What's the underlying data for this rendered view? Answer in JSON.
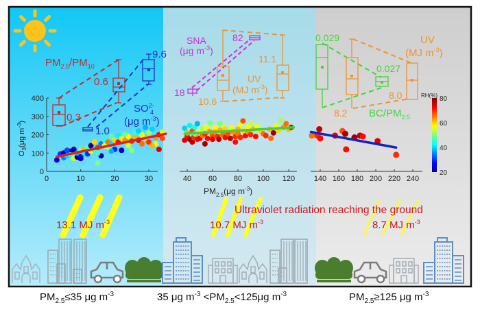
{
  "panels": [
    {
      "id": "low",
      "condition_label": {
        "prefix": "PM",
        "sub": "2.5",
        "text": "≤35 μg m",
        "sup": "-3"
      },
      "background": [
        "#12c7f5",
        "#b6ecfb"
      ],
      "uv_value_label": "13.1 MJ m-3",
      "uv_value": {
        "number": "13.1",
        "unit": "MJ m",
        "sup": "-3"
      },
      "scatter": {
        "xlim": [
          0,
          35
        ],
        "xticks": [
          0,
          10,
          20,
          30
        ],
        "ylim": [
          0,
          400
        ],
        "yticks": [
          0,
          100,
          200,
          300,
          400
        ],
        "ylabel": {
          "main": "O",
          "sub": "3",
          "rest": "(μg m",
          "sup": "-3",
          "close": ")"
        },
        "fit_line": {
          "color": "#e01f1f",
          "x": [
            3,
            35
          ],
          "y": [
            80,
            205
          ]
        },
        "points": [
          [
            3,
            62,
            25
          ],
          [
            4,
            95,
            30
          ],
          [
            5,
            100,
            22
          ],
          [
            5,
            75,
            35
          ],
          [
            6,
            85,
            40
          ],
          [
            7,
            110,
            25
          ],
          [
            7,
            90,
            45
          ],
          [
            8,
            120,
            22
          ],
          [
            8,
            70,
            55
          ],
          [
            9,
            78,
            20
          ],
          [
            9,
            100,
            38
          ],
          [
            10,
            80,
            28
          ],
          [
            10,
            115,
            50
          ],
          [
            11,
            120,
            62
          ],
          [
            11,
            100,
            42
          ],
          [
            12,
            130,
            48
          ],
          [
            12,
            95,
            30
          ],
          [
            13,
            140,
            22
          ],
          [
            13,
            110,
            56
          ],
          [
            14,
            120,
            44
          ],
          [
            14,
            160,
            60
          ],
          [
            15,
            130,
            70
          ],
          [
            15,
            45,
            50
          ],
          [
            16,
            150,
            35
          ],
          [
            16,
            85,
            22
          ],
          [
            17,
            140,
            58
          ],
          [
            17,
            170,
            45
          ],
          [
            18,
            160,
            66
          ],
          [
            18,
            130,
            52
          ],
          [
            19,
            150,
            40
          ],
          [
            19,
            190,
            48
          ],
          [
            20,
            170,
            60
          ],
          [
            20,
            120,
            30
          ],
          [
            21,
            160,
            72
          ],
          [
            21,
            195,
            42
          ],
          [
            22,
            180,
            55
          ],
          [
            22,
            115,
            25
          ],
          [
            23,
            170,
            64
          ],
          [
            23,
            200,
            48
          ],
          [
            24,
            190,
            58
          ],
          [
            25,
            165,
            70
          ],
          [
            25,
            115,
            50
          ],
          [
            26,
            185,
            62
          ],
          [
            26,
            210,
            45
          ],
          [
            27,
            170,
            74
          ],
          [
            28,
            200,
            56
          ],
          [
            28,
            150,
            66
          ],
          [
            29,
            240,
            38
          ],
          [
            29,
            180,
            60
          ],
          [
            30,
            210,
            52
          ],
          [
            30,
            160,
            70
          ],
          [
            31,
            230,
            40
          ],
          [
            32,
            185,
            64
          ],
          [
            32,
            150,
            58
          ],
          [
            33,
            200,
            72
          ],
          [
            33,
            120,
            75
          ],
          [
            34,
            215,
            55
          ],
          [
            34,
            180,
            68
          ],
          [
            6,
            115,
            32
          ],
          [
            10,
            70,
            24
          ],
          [
            15,
            100,
            46
          ],
          [
            19,
            110,
            38
          ],
          [
            24,
            140,
            54
          ],
          [
            27,
            220,
            40
          ],
          [
            31,
            140,
            62
          ]
        ]
      },
      "boxplots": [
        {
          "name": "PM2.5/PM10",
          "label": {
            "main": "PM",
            "sub1": "2.5",
            "mid": "/PM",
            "sub2": "10"
          },
          "color": "#c8282d",
          "boxes": [
            {
              "value_label": "0.3",
              "whisker_high": 400,
              "q3": 370,
              "median": 325,
              "mean": 318,
              "q1": 265,
              "whisker_low": 248
            },
            {
              "value_label": "0.6"
            }
          ]
        },
        {
          "name": "SO4 2-",
          "label": {
            "main": "SO",
            "sub": "4",
            "sup": "2-",
            "unit": "(μg m",
            "unit_sup": "-3",
            "close": ")"
          },
          "color": "#1d34c4",
          "boxes": [
            {
              "value_label": "1.0"
            },
            {
              "value_label": "9.6"
            }
          ]
        }
      ]
    },
    {
      "id": "mid",
      "condition_label": {
        "text1": "35 μg m",
        "sup1": "-3",
        "text2": " <PM",
        "sub": "2.5",
        "text3": "<125μg m",
        "sup2": "-3"
      },
      "background": [
        "#a6dbe9",
        "#d6e9f1"
      ],
      "uv_value_label": "10.7 MJ m-3",
      "uv_value": {
        "number": "10.7",
        "unit": "MJ m",
        "sup": "-3"
      },
      "scatter": {
        "xlim": [
          35,
          125
        ],
        "xticks": [
          40,
          60,
          80,
          100,
          120
        ],
        "xlabel": {
          "main": "PM",
          "sub": "2.5",
          "rest": "(μg m",
          "sup": "-3",
          "close": ")"
        },
        "ylim": [
          0,
          400
        ],
        "fit_line": {
          "color": "#3fd23a",
          "x": [
            38,
            124
          ],
          "y": [
            205,
            240
          ]
        },
        "points": [
          [
            38,
            235,
            40
          ],
          [
            38,
            170,
            75
          ],
          [
            40,
            190,
            72
          ],
          [
            40,
            210,
            62
          ],
          [
            42,
            175,
            78
          ],
          [
            42,
            250,
            42
          ],
          [
            44,
            220,
            68
          ],
          [
            44,
            160,
            76
          ],
          [
            45,
            185,
            70
          ],
          [
            46,
            240,
            44
          ],
          [
            47,
            200,
            64
          ],
          [
            48,
            175,
            72
          ],
          [
            48,
            260,
            38
          ],
          [
            50,
            215,
            58
          ],
          [
            50,
            180,
            74
          ],
          [
            52,
            235,
            52
          ],
          [
            52,
            195,
            66
          ],
          [
            54,
            150,
            78
          ],
          [
            54,
            205,
            70
          ],
          [
            55,
            240,
            56
          ],
          [
            56,
            180,
            72
          ],
          [
            57,
            220,
            60
          ],
          [
            58,
            265,
            50
          ],
          [
            60,
            195,
            68
          ],
          [
            60,
            175,
            74
          ],
          [
            62,
            215,
            64
          ],
          [
            62,
            240,
            58
          ],
          [
            64,
            190,
            70
          ],
          [
            65,
            175,
            76
          ],
          [
            66,
            225,
            62
          ],
          [
            68,
            200,
            66
          ],
          [
            68,
            250,
            55
          ],
          [
            70,
            185,
            72
          ],
          [
            70,
            230,
            60
          ],
          [
            72,
            205,
            68
          ],
          [
            74,
            180,
            76
          ],
          [
            75,
            240,
            58
          ],
          [
            76,
            215,
            64
          ],
          [
            78,
            190,
            70
          ],
          [
            78,
            160,
            72
          ],
          [
            80,
            230,
            62
          ],
          [
            80,
            205,
            66
          ],
          [
            82,
            255,
            56
          ],
          [
            82,
            185,
            70
          ],
          [
            84,
            275,
            68
          ],
          [
            85,
            220,
            60
          ],
          [
            86,
            195,
            72
          ],
          [
            88,
            240,
            58
          ],
          [
            88,
            215,
            64
          ],
          [
            90,
            200,
            70
          ],
          [
            92,
            230,
            62
          ],
          [
            94,
            190,
            72
          ],
          [
            95,
            245,
            56
          ],
          [
            98,
            220,
            60
          ],
          [
            100,
            205,
            66
          ],
          [
            102,
            195,
            70
          ],
          [
            105,
            230,
            62
          ],
          [
            106,
            180,
            66
          ],
          [
            108,
            210,
            78
          ],
          [
            110,
            250,
            56
          ],
          [
            112,
            225,
            60
          ],
          [
            114,
            280,
            52
          ],
          [
            116,
            240,
            64
          ],
          [
            118,
            260,
            66
          ],
          [
            120,
            230,
            62
          ],
          [
            122,
            240,
            74
          ],
          [
            90,
            260,
            54
          ],
          [
            58,
            215,
            64
          ],
          [
            46,
            205,
            48
          ],
          [
            66,
            260,
            50
          ]
        ]
      },
      "boxplots": [
        {
          "name": "SNA",
          "label": {
            "line1": "SNA",
            "line2": "(μg m",
            "sup": "-3",
            "close": ")"
          },
          "color": "#d42ad8",
          "boxes": [
            {
              "value_label": "18"
            },
            {
              "value_label": "82"
            }
          ]
        },
        {
          "name": "UV",
          "label": {
            "line1": "UV",
            "line2": "(MJ m",
            "sup": "-3",
            "close": ")"
          },
          "color": "#f0922e",
          "boxes": [
            {
              "value_label": "10.6"
            },
            {
              "value_label": "11.1"
            }
          ]
        }
      ]
    },
    {
      "id": "high",
      "condition_label": {
        "prefix": "PM",
        "sub": "2.5",
        "text": "≥125 μg m",
        "sup": "-3"
      },
      "background": [
        "#cecece",
        "#ececec"
      ],
      "uv_value_label": "8.7 MJ m-3",
      "uv_value": {
        "number": "8.7",
        "unit": "MJ m",
        "sup": "-3"
      },
      "scatter": {
        "xlim": [
          125,
          240
        ],
        "xticks": [
          140,
          160,
          180,
          200,
          220,
          240
        ],
        "ylim": [
          0,
          400
        ],
        "fit_line": {
          "color": "#1126c0",
          "x": [
            130,
            222
          ],
          "y": [
            215,
            130
          ]
        },
        "points": [
          [
            131,
            195,
            66
          ],
          [
            137,
            195,
            70
          ],
          [
            139,
            230,
            76
          ],
          [
            140,
            180,
            72
          ],
          [
            156,
            195,
            74
          ],
          [
            164,
            220,
            68
          ],
          [
            167,
            205,
            78
          ],
          [
            168,
            120,
            72
          ],
          [
            177,
            185,
            78
          ],
          [
            183,
            195,
            76
          ],
          [
            186,
            190,
            72
          ],
          [
            202,
            165,
            74
          ],
          [
            222,
            90,
            70
          ]
        ]
      },
      "colorbar": {
        "title": "RH(%)",
        "ticks": [
          20,
          40,
          60,
          80
        ],
        "range": [
          20,
          80
        ]
      },
      "boxplots": [
        {
          "name": "BC/PM2.5",
          "label": {
            "main": "BC/PM",
            "sub": "2.5"
          },
          "color": "#3dd73a",
          "boxes": [
            {
              "value_label": "0.029"
            },
            {
              "value_label": "0.027"
            }
          ]
        },
        {
          "name": "UV",
          "label": {
            "line1": "UV",
            "line2": "(MJ m",
            "sup": "-3",
            "close": ")"
          },
          "color": "#f0922e",
          "boxes": [
            {
              "value_label": "8.2"
            },
            {
              "value_label": "8.0"
            }
          ]
        }
      ]
    }
  ],
  "banner": {
    "text": "Ultraviolet radiation reaching the ground",
    "color": "#d01616"
  },
  "colors": {
    "uv_text": "#c41c1c",
    "sun": "#ffc21a",
    "rays": "#ffff1e",
    "frame": "#111111",
    "tree": "#4b7d2f",
    "car": "#7a7a7a",
    "building_gray": "#9aa5ae",
    "building_blue": "#5b8fc6"
  },
  "icons": [
    "sun-icon",
    "uv-ray-icon",
    "castle-icon",
    "building-icon",
    "tower-icon",
    "car-icon",
    "tree-icon",
    "office-icon"
  ]
}
